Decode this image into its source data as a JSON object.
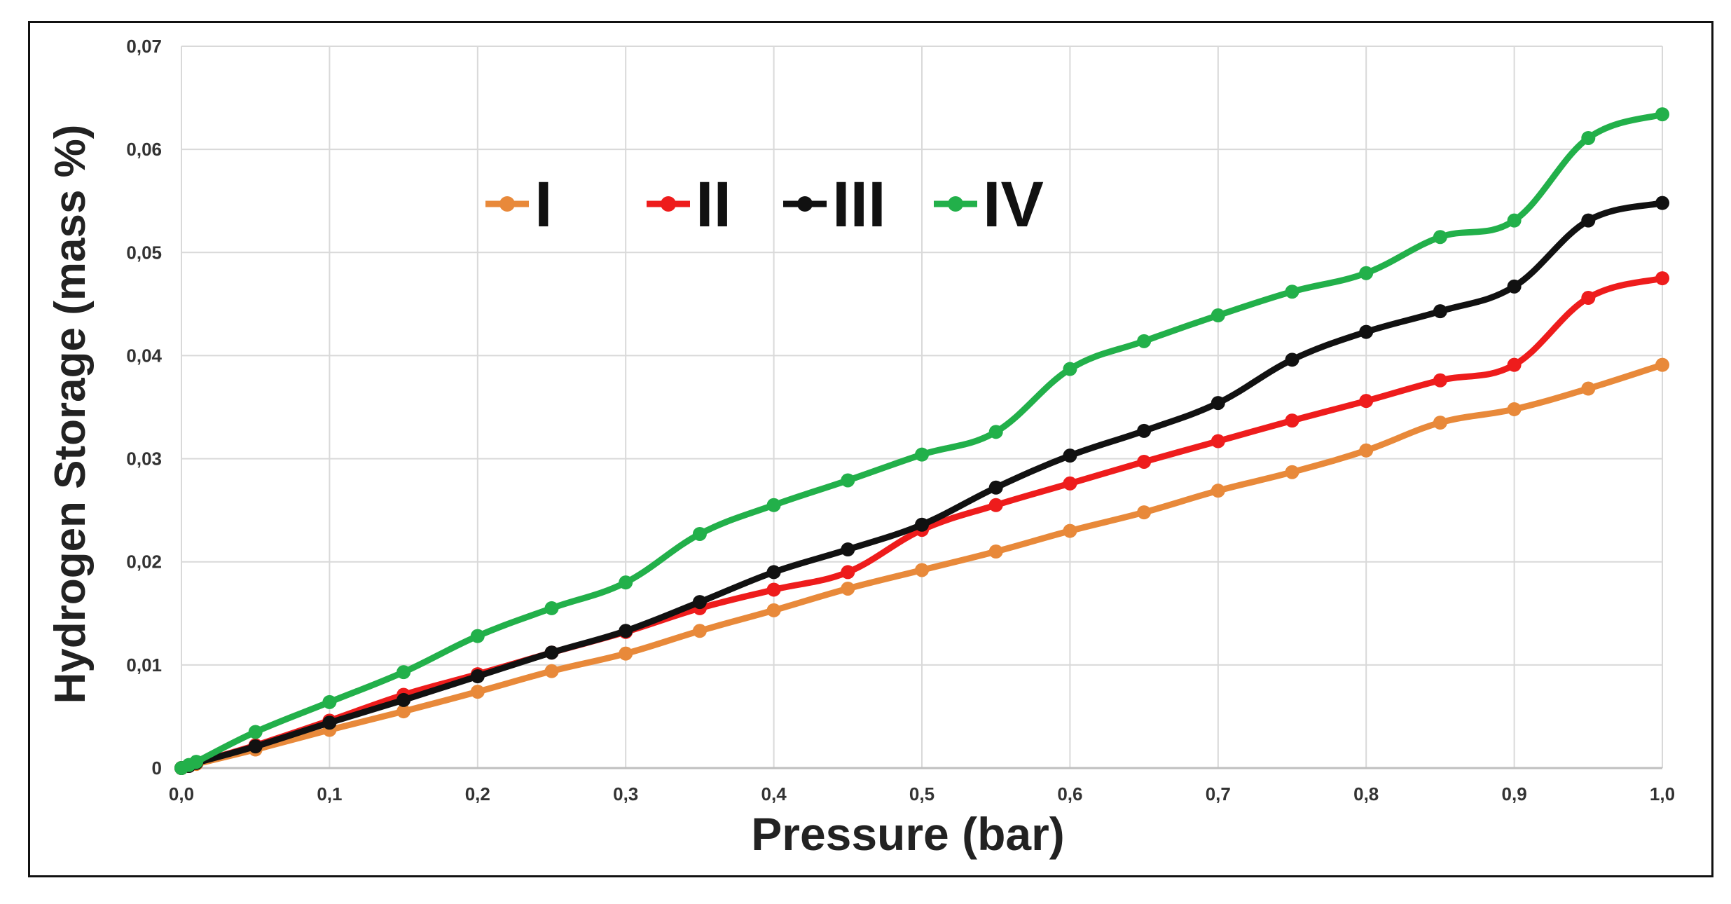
{
  "chart_data": {
    "type": "line",
    "title": "",
    "xlabel": "Pressure (bar)",
    "ylabel": "Hydrogen Storage (mass %)",
    "xlim": [
      0,
      1.0
    ],
    "ylim": [
      0,
      0.07
    ],
    "grid": true,
    "legend_position": "top-left",
    "x_ticks": [
      "0,0",
      "0,1",
      "0,2",
      "0,3",
      "0,4",
      "0,5",
      "0,6",
      "0,7",
      "0,8",
      "0,9",
      "1,0"
    ],
    "y_ticks": [
      "0",
      "0,01",
      "0,02",
      "0,03",
      "0,04",
      "0,05",
      "0,06",
      "0,07"
    ],
    "x": [
      0.0,
      0.005,
      0.01,
      0.05,
      0.1,
      0.15,
      0.2,
      0.25,
      0.3,
      0.35,
      0.4,
      0.45,
      0.5,
      0.55,
      0.6,
      0.65,
      0.7,
      0.75,
      0.8,
      0.85,
      0.9,
      0.95,
      1.0
    ],
    "series": [
      {
        "name": "I",
        "color": "#e8893a",
        "values": [
          0.0,
          0.0002,
          0.0004,
          0.0018,
          0.0037,
          0.0055,
          0.0074,
          0.0094,
          0.0111,
          0.0133,
          0.0153,
          0.0174,
          0.0192,
          0.021,
          0.023,
          0.0248,
          0.0269,
          0.0287,
          0.0308,
          0.0335,
          0.0348,
          0.0368,
          0.0391
        ]
      },
      {
        "name": "II",
        "color": "#ee1c1c",
        "values": [
          0.0,
          0.0002,
          0.0005,
          0.0022,
          0.0046,
          0.0071,
          0.0091,
          0.0112,
          0.0132,
          0.0155,
          0.0173,
          0.019,
          0.0231,
          0.0255,
          0.0276,
          0.0297,
          0.0317,
          0.0337,
          0.0356,
          0.0376,
          0.0391,
          0.0456,
          0.0475
        ]
      },
      {
        "name": "III",
        "color": "#111111",
        "values": [
          0.0,
          0.0002,
          0.0005,
          0.0021,
          0.0044,
          0.0066,
          0.0089,
          0.0112,
          0.0133,
          0.0161,
          0.019,
          0.0212,
          0.0236,
          0.0272,
          0.0303,
          0.0327,
          0.0354,
          0.0396,
          0.0423,
          0.0443,
          0.0467,
          0.0531,
          0.0548
        ]
      },
      {
        "name": "IV",
        "color": "#22b04a",
        "values": [
          0.0,
          0.0003,
          0.0006,
          0.0035,
          0.0064,
          0.0093,
          0.0128,
          0.0155,
          0.018,
          0.0227,
          0.0255,
          0.0279,
          0.0304,
          0.0326,
          0.0387,
          0.0414,
          0.0439,
          0.0462,
          0.048,
          0.0515,
          0.0531,
          0.0611,
          0.0634
        ]
      }
    ]
  }
}
